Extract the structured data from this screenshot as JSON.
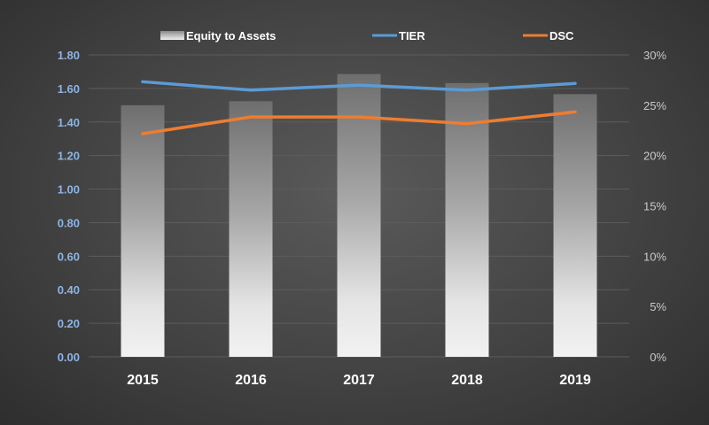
{
  "chart_data": {
    "type": "bar",
    "categories": [
      "2015",
      "2016",
      "2017",
      "2018",
      "2019"
    ],
    "series": [
      {
        "name": "Equity to Assets",
        "type": "bar",
        "axis": "right",
        "unit": "%",
        "values": [
          25.0,
          25.4,
          28.1,
          27.2,
          26.1
        ]
      },
      {
        "name": "TIER",
        "type": "line",
        "axis": "left",
        "values": [
          1.64,
          1.59,
          1.62,
          1.59,
          1.63
        ],
        "color": "#5b9bd5"
      },
      {
        "name": "DSC",
        "type": "line",
        "axis": "left",
        "values": [
          1.33,
          1.43,
          1.43,
          1.39,
          1.46
        ],
        "color": "#ed7d31"
      }
    ],
    "y_left": {
      "min": 0,
      "max": 1.8,
      "ticks": [
        "0.00",
        "0.20",
        "0.40",
        "0.60",
        "0.80",
        "1.00",
        "1.20",
        "1.40",
        "1.60",
        "1.80"
      ]
    },
    "y_right": {
      "min": 0,
      "max": 30,
      "ticks": [
        "0%",
        "5%",
        "10%",
        "15%",
        "20%",
        "25%",
        "30%"
      ]
    },
    "legend": {
      "placement": "top",
      "items": [
        "Equity to Assets",
        "TIER",
        "DSC"
      ]
    },
    "grid": true
  }
}
